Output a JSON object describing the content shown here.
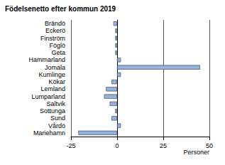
{
  "chart_data": {
    "type": "bar",
    "orientation": "horizontal",
    "title": "Födelsenetto efter kommun 2019",
    "x_label": "Personer",
    "categories": [
      "Brändö",
      "Eckerö",
      "Finström",
      "Föglö",
      "Geta",
      "Hammarland",
      "Jomala",
      "Kumlinge",
      "Kökar",
      "Lemland",
      "Lumparland",
      "Saltvik",
      "Sottunga",
      "Sund",
      "Vårdö",
      "Mariehamn"
    ],
    "values": [
      -2,
      -1,
      -1,
      -1,
      -1,
      2,
      45,
      2,
      -3,
      -6,
      -7,
      -4,
      -1,
      -3,
      2,
      -21
    ],
    "color": "#95b3d7",
    "xlim": [
      -25,
      50
    ],
    "xticks": [
      -25,
      0,
      25,
      50
    ],
    "grid": true
  }
}
